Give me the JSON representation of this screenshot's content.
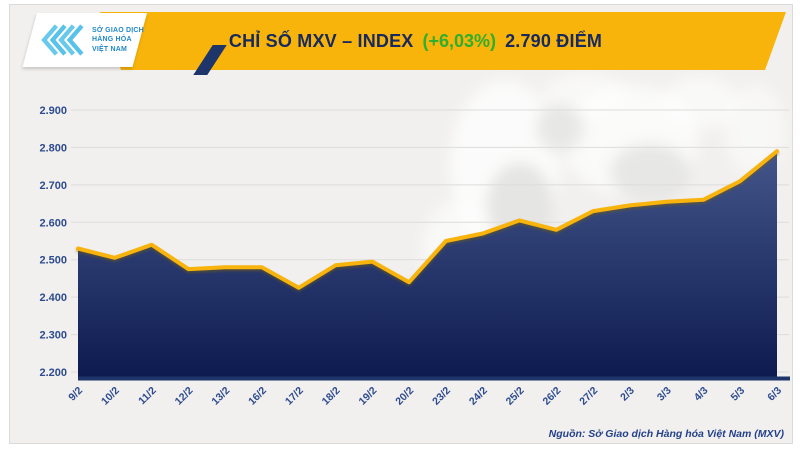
{
  "header": {
    "logo": {
      "line1": "SỞ GIAO DỊCH",
      "line2": "HÀNG HÓA",
      "line3": "VIỆT NAM"
    },
    "banner": {
      "title": "CHỈ SỐ MXV – INDEX",
      "change": "(+6,03%)",
      "value": "2.790 ĐIỂM"
    }
  },
  "chart_data": {
    "type": "area",
    "title": "CHỈ SỐ MXV – INDEX (+6,03%) 2.790 ĐIỂM",
    "x_labels": [
      "9/2",
      "10/2",
      "11/2",
      "12/2",
      "13/2",
      "16/2",
      "17/2",
      "18/2",
      "19/2",
      "20/2",
      "23/2",
      "24/2",
      "25/2",
      "26/2",
      "27/2",
      "2/3",
      "3/3",
      "4/3",
      "5/3",
      "6/3"
    ],
    "values": [
      2530,
      2505,
      2540,
      2475,
      2480,
      2480,
      2425,
      2485,
      2495,
      2440,
      2550,
      2570,
      2605,
      2580,
      2630,
      2645,
      2655,
      2660,
      2710,
      2790
    ],
    "y_tick_labels": [
      "2.900",
      "2.800",
      "2.700",
      "2.600",
      "2.500",
      "2.400",
      "2.300",
      "2.200"
    ],
    "ylim": [
      2200,
      2900
    ],
    "grid": "horizontal",
    "legend": "none",
    "line_color": "#f8b30b",
    "fill_gradient_top": "#44578b",
    "fill_gradient_bottom": "#0d1a50",
    "tick_label_color": "#2d4b8f",
    "axis_line_color": "#1e3569",
    "last_value_label": "2.790"
  },
  "footer": {
    "source": "Nguồn: Sở Giao dịch Hàng hóa Việt Nam (MXV)"
  },
  "colors": {
    "banner_bg": "#f8b40a",
    "banner_text": "#17295e",
    "change_green": "#2fae2f",
    "logo_icon_blue": "#4fbfea",
    "logo_text_blue": "#2188c9",
    "green_slash": "#2f9e68",
    "navy_slash": "#1e3569",
    "card_bg": "#f1f0ee"
  }
}
